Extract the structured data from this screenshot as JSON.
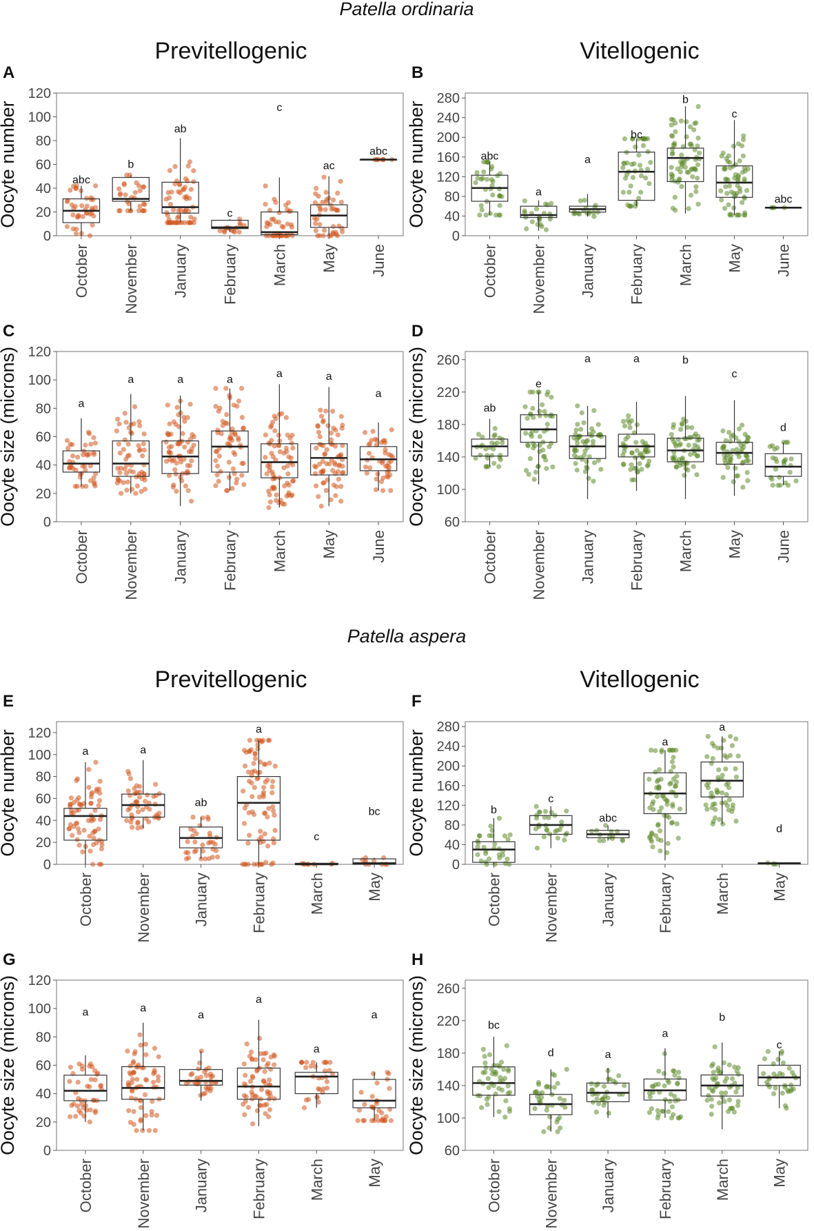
{
  "figure": {
    "species": [
      "Patella ordinaria",
      "Patella aspera"
    ],
    "columns": [
      "Previtellogenic",
      "Vitellogenic"
    ]
  },
  "colors": {
    "previtellogenic": "#d2581f",
    "vitellogenic": "#5f8a2c",
    "box": "#333333"
  },
  "chart_data": [
    {
      "panel": "A",
      "type": "box",
      "species": "Patella ordinaria",
      "stage": "Previtellogenic",
      "ylabel": "Oocyte number",
      "ylim": [
        0,
        120
      ],
      "yticks": [
        0,
        20,
        40,
        60,
        80,
        100,
        120
      ],
      "categories": [
        "October",
        "November",
        "January",
        "February",
        "March",
        "May",
        "June"
      ],
      "boxes": [
        {
          "q1": 11,
          "median": 21,
          "q3": 31,
          "low": 0,
          "high": 42
        },
        {
          "q1": 29,
          "median": 31,
          "q3": 49,
          "low": 21,
          "high": 51
        },
        {
          "q1": 19,
          "median": 24,
          "q3": 45,
          "low": 11,
          "high": 82
        },
        {
          "q1": 6,
          "median": 7,
          "q3": 13,
          "low": 3,
          "high": 14
        },
        {
          "q1": 1,
          "median": 3,
          "q3": 20,
          "low": 0,
          "high": 49
        },
        {
          "q1": 7,
          "median": 17,
          "q3": 26,
          "low": 0,
          "high": 50
        },
        {
          "q1": 64,
          "median": 64,
          "q3": 64,
          "low": 64,
          "high": 64
        }
      ],
      "letters": [
        "abc",
        "b",
        "ab",
        "c",
        "c",
        "ac",
        "abc"
      ],
      "letter_y": [
        44,
        57,
        87,
        16,
        105,
        56,
        68
      ]
    },
    {
      "panel": "B",
      "type": "box",
      "species": "Patella ordinaria",
      "stage": "Vitellogenic",
      "ylabel": "Oocyte number",
      "ylim": [
        0,
        290
      ],
      "yticks": [
        0,
        40,
        80,
        120,
        160,
        200,
        240,
        280
      ],
      "categories": [
        "October",
        "November",
        "January",
        "February",
        "March",
        "May",
        "June"
      ],
      "boxes": [
        {
          "q1": 70,
          "median": 97,
          "q3": 123,
          "low": 42,
          "high": 150
        },
        {
          "q1": 37,
          "median": 42,
          "q3": 60,
          "low": 10,
          "high": 72
        },
        {
          "q1": 48,
          "median": 54,
          "q3": 60,
          "low": 39,
          "high": 85
        },
        {
          "q1": 72,
          "median": 130,
          "q3": 170,
          "low": 60,
          "high": 197
        },
        {
          "q1": 110,
          "median": 158,
          "q3": 178,
          "low": 45,
          "high": 263
        },
        {
          "q1": 78,
          "median": 108,
          "q3": 142,
          "low": 42,
          "high": 235
        },
        {
          "q1": 57,
          "median": 57,
          "q3": 57,
          "low": 57,
          "high": 57
        }
      ],
      "letters": [
        "abc",
        "a",
        "a",
        "bc",
        "b",
        "c",
        "abc"
      ],
      "letter_y": [
        155,
        82,
        148,
        198,
        270,
        240,
        67
      ]
    },
    {
      "panel": "C",
      "type": "box",
      "species": "Patella ordinaria",
      "stage": "Previtellogenic",
      "ylabel": "Oocyte size (microns)",
      "ylim": [
        0,
        120
      ],
      "yticks": [
        0,
        20,
        40,
        60,
        80,
        100,
        120
      ],
      "categories": [
        "October",
        "November",
        "January",
        "February",
        "March",
        "May",
        "June"
      ],
      "boxes": [
        {
          "q1": 35,
          "median": 41,
          "q3": 50,
          "low": 25,
          "high": 73
        },
        {
          "q1": 32,
          "median": 41,
          "q3": 57,
          "low": 20,
          "high": 90
        },
        {
          "q1": 34,
          "median": 46,
          "q3": 57,
          "low": 11,
          "high": 89
        },
        {
          "q1": 35,
          "median": 53,
          "q3": 64,
          "low": 22,
          "high": 94
        },
        {
          "q1": 31,
          "median": 42,
          "q3": 55,
          "low": 10,
          "high": 97
        },
        {
          "q1": 33,
          "median": 45,
          "q3": 55,
          "low": 11,
          "high": 95
        },
        {
          "q1": 36,
          "median": 44,
          "q3": 53,
          "low": 22,
          "high": 70
        }
      ],
      "letters": [
        "a",
        "a",
        "a",
        "a",
        "a",
        "a",
        "a"
      ],
      "letter_y": [
        81,
        98,
        98,
        98,
        102,
        100,
        88
      ]
    },
    {
      "panel": "D",
      "type": "box",
      "species": "Patella ordinaria",
      "stage": "Vitellogenic",
      "ylabel": "Oocyte size (microns)",
      "ylim": [
        60,
        270
      ],
      "yticks": [
        60,
        100,
        140,
        180,
        220,
        260
      ],
      "categories": [
        "October",
        "November",
        "January",
        "February",
        "March",
        "May",
        "June"
      ],
      "boxes": [
        {
          "q1": 141,
          "median": 153,
          "q3": 162,
          "low": 128,
          "high": 187
        },
        {
          "q1": 158,
          "median": 174,
          "q3": 192,
          "low": 106,
          "high": 220
        },
        {
          "q1": 138,
          "median": 153,
          "q3": 166,
          "low": 88,
          "high": 203
        },
        {
          "q1": 140,
          "median": 153,
          "q3": 168,
          "low": 98,
          "high": 208
        },
        {
          "q1": 134,
          "median": 148,
          "q3": 163,
          "low": 88,
          "high": 215
        },
        {
          "q1": 131,
          "median": 145,
          "q3": 158,
          "low": 92,
          "high": 210
        },
        {
          "q1": 116,
          "median": 128,
          "q3": 144,
          "low": 105,
          "high": 158
        }
      ],
      "letters": [
        "ab",
        "e",
        "a",
        "a",
        "b",
        "c",
        "d"
      ],
      "letter_y": [
        196,
        226,
        257,
        257,
        255,
        238,
        172
      ]
    },
    {
      "panel": "E",
      "type": "box",
      "species": "Patella aspera",
      "stage": "Previtellogenic",
      "ylabel": "Oocyte number",
      "ylim": [
        0,
        130
      ],
      "yticks": [
        0,
        20,
        40,
        60,
        80,
        100,
        120
      ],
      "categories": [
        "October",
        "November",
        "January",
        "February",
        "March",
        "May"
      ],
      "boxes": [
        {
          "q1": 22,
          "median": 44,
          "q3": 51,
          "low": 0,
          "high": 93
        },
        {
          "q1": 43,
          "median": 54,
          "q3": 64,
          "low": 33,
          "high": 95
        },
        {
          "q1": 15,
          "median": 24,
          "q3": 34,
          "low": 5,
          "high": 43
        },
        {
          "q1": 22,
          "median": 56,
          "q3": 80,
          "low": 0,
          "high": 113
        },
        {
          "q1": 0,
          "median": 0,
          "q3": 1,
          "low": 0,
          "high": 1
        },
        {
          "q1": 0,
          "median": 1,
          "q3": 5,
          "low": 0,
          "high": 6
        }
      ],
      "letters": [
        "a",
        "a",
        "ab",
        "a",
        "c",
        "bc"
      ],
      "letter_y": [
        100,
        101,
        53,
        120,
        22,
        45
      ]
    },
    {
      "panel": "F",
      "type": "box",
      "species": "Patella aspera",
      "stage": "Vitellogenic",
      "ylabel": "Oocyte number",
      "ylim": [
        0,
        290
      ],
      "yticks": [
        0,
        40,
        80,
        120,
        160,
        200,
        240,
        280
      ],
      "categories": [
        "October",
        "November",
        "January",
        "February",
        "March",
        "May"
      ],
      "boxes": [
        {
          "q1": 4,
          "median": 30,
          "q3": 46,
          "low": 0,
          "high": 94
        },
        {
          "q1": 61,
          "median": 80,
          "q3": 99,
          "low": 33,
          "high": 118
        },
        {
          "q1": 54,
          "median": 61,
          "q3": 69,
          "low": 48,
          "high": 79
        },
        {
          "q1": 103,
          "median": 144,
          "q3": 186,
          "low": 8,
          "high": 232
        },
        {
          "q1": 137,
          "median": 170,
          "q3": 208,
          "low": 82,
          "high": 260
        },
        {
          "q1": 1,
          "median": 2,
          "q3": 3,
          "low": 0,
          "high": 3
        }
      ],
      "letters": [
        "b",
        "c",
        "abc",
        "a",
        "a",
        "d"
      ],
      "letter_y": [
        104,
        126,
        87,
        242,
        272,
        65
      ]
    },
    {
      "panel": "G",
      "type": "box",
      "species": "Patella aspera",
      "stage": "Previtellogenic",
      "ylabel": "Oocyte size (microns)",
      "ylim": [
        0,
        120
      ],
      "yticks": [
        0,
        20,
        40,
        60,
        80,
        100,
        120
      ],
      "categories": [
        "October",
        "November",
        "January",
        "February",
        "March",
        "May"
      ],
      "boxes": [
        {
          "q1": 35,
          "median": 42,
          "q3": 53,
          "low": 20,
          "high": 67
        },
        {
          "q1": 36,
          "median": 44,
          "q3": 59,
          "low": 14,
          "high": 90
        },
        {
          "q1": 46,
          "median": 49,
          "q3": 57,
          "low": 35,
          "high": 70
        },
        {
          "q1": 36,
          "median": 45,
          "q3": 58,
          "low": 17,
          "high": 92
        },
        {
          "q1": 40,
          "median": 52,
          "q3": 55,
          "low": 30,
          "high": 62
        },
        {
          "q1": 30,
          "median": 35,
          "q3": 50,
          "low": 21,
          "high": 55
        }
      ],
      "letters": [
        "a",
        "a",
        "a",
        "a",
        "a",
        "a"
      ],
      "letter_y": [
        95,
        98,
        93,
        104,
        69,
        93
      ]
    },
    {
      "panel": "H",
      "type": "box",
      "species": "Patella aspera",
      "stage": "Vitellogenic",
      "ylabel": "Oocyte size (microns)",
      "ylim": [
        60,
        270
      ],
      "yticks": [
        60,
        100,
        140,
        180,
        220,
        260
      ],
      "categories": [
        "October",
        "November",
        "January",
        "February",
        "March",
        "May"
      ],
      "boxes": [
        {
          "q1": 128,
          "median": 143,
          "q3": 163,
          "low": 101,
          "high": 200
        },
        {
          "q1": 104,
          "median": 117,
          "q3": 129,
          "low": 83,
          "high": 160
        },
        {
          "q1": 120,
          "median": 131,
          "q3": 143,
          "low": 100,
          "high": 162
        },
        {
          "q1": 122,
          "median": 134,
          "q3": 148,
          "low": 100,
          "high": 186
        },
        {
          "q1": 127,
          "median": 140,
          "q3": 153,
          "low": 86,
          "high": 193
        },
        {
          "q1": 140,
          "median": 150,
          "q3": 165,
          "low": 112,
          "high": 182
        }
      ],
      "letters": [
        "bc",
        "d",
        "a",
        "a",
        "b",
        "c"
      ],
      "letter_y": [
        210,
        176,
        174,
        200,
        220,
        186
      ]
    }
  ]
}
